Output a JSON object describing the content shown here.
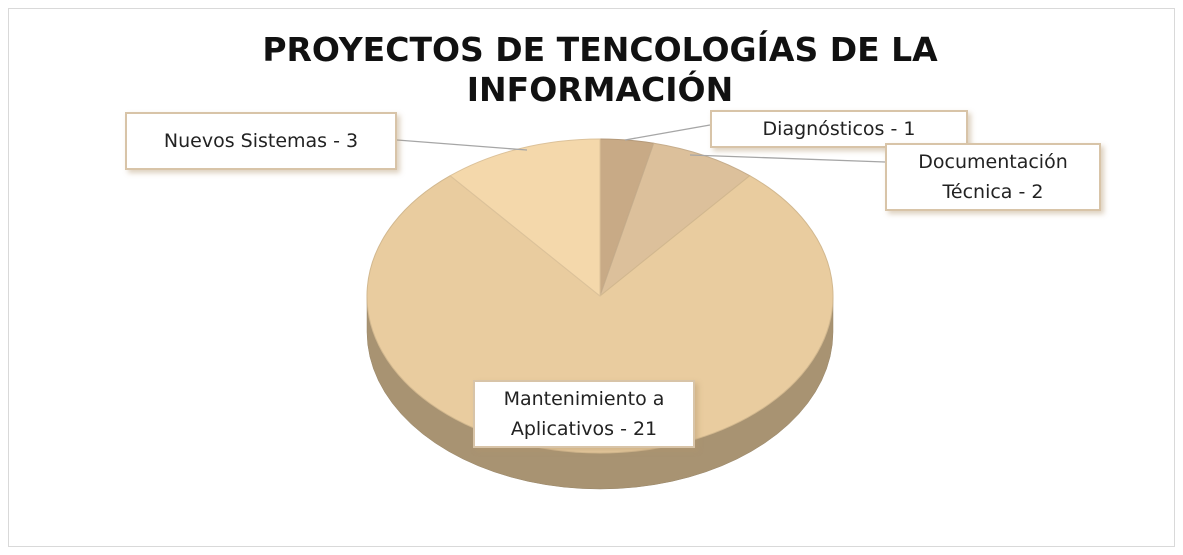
{
  "chart_data": {
    "type": "pie",
    "title": "PROYECTOS DE TENCOLOGÍAS DE LA INFORMACIÓN",
    "values": [
      1,
      2,
      21,
      3
    ],
    "value_labels": [
      "Diagnósticos - 1",
      "Documentación Técnica - 2",
      "Mantenimiento a Aplicativos - 21",
      "Nuevos Sistemas - 3"
    ],
    "colors": [
      "#c8aa86",
      "#dcc09b",
      "#e9cc9f",
      "#f4d8ab"
    ],
    "start_angle": 0,
    "direction": "clockwise",
    "three_d": true
  }
}
